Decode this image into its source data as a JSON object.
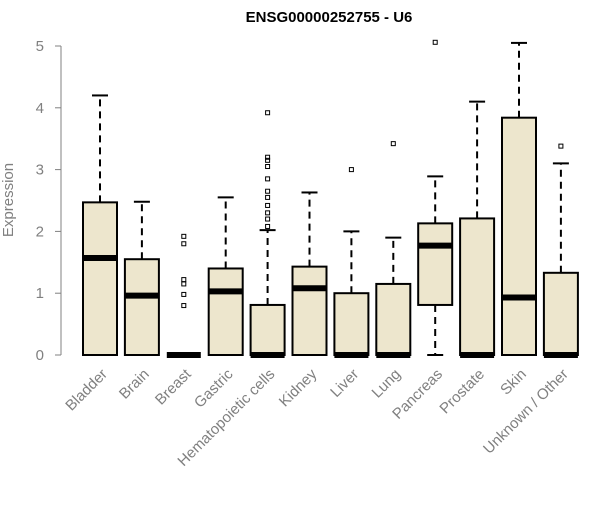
{
  "chart_data": {
    "type": "boxplot",
    "title": "ENSG00000252755 - U6",
    "ylabel": "Expression",
    "ylim": [
      0,
      5
    ],
    "yticks": [
      0,
      1,
      2,
      3,
      4,
      5
    ],
    "box_color": "#ede6cd",
    "outline_color": "#000000",
    "axis_color": "#808080",
    "label_color": "#808080",
    "categories": [
      "Bladder",
      "Brain",
      "Breast",
      "Gastric",
      "Hematopoietic cells",
      "Kidney",
      "Liver",
      "Lung",
      "Pancreas",
      "Prostate",
      "Skin",
      "Unknown / Other"
    ],
    "boxes": [
      {
        "q1": 0,
        "median": 1.57,
        "q3": 2.47,
        "whisker_low": 0,
        "whisker_high": 4.2,
        "outliers": []
      },
      {
        "q1": 0,
        "median": 0.96,
        "q3": 1.55,
        "whisker_low": 0,
        "whisker_high": 2.48,
        "outliers": []
      },
      {
        "q1": 0,
        "median": 0,
        "q3": 0,
        "whisker_low": 0,
        "whisker_high": 0,
        "outliers": [
          0.8,
          0.98,
          1.15,
          1.22,
          1.8,
          1.92
        ]
      },
      {
        "q1": 0,
        "median": 1.03,
        "q3": 1.4,
        "whisker_low": 0,
        "whisker_high": 2.55,
        "outliers": []
      },
      {
        "q1": 0,
        "median": 0,
        "q3": 0.81,
        "whisker_low": 0,
        "whisker_high": 2.02,
        "outliers": [
          2.08,
          2.2,
          2.3,
          2.42,
          2.55,
          2.65,
          2.85,
          3.05,
          3.15,
          3.2,
          3.92
        ]
      },
      {
        "q1": 0,
        "median": 1.08,
        "q3": 1.43,
        "whisker_low": 0,
        "whisker_high": 2.63,
        "outliers": []
      },
      {
        "q1": 0,
        "median": 0,
        "q3": 1.0,
        "whisker_low": 0,
        "whisker_high": 2.0,
        "outliers": [
          3.0
        ]
      },
      {
        "q1": 0,
        "median": 0,
        "q3": 1.15,
        "whisker_low": 0,
        "whisker_high": 1.9,
        "outliers": [
          3.42
        ]
      },
      {
        "q1": 0.81,
        "median": 1.77,
        "q3": 2.13,
        "whisker_low": 0,
        "whisker_high": 2.89,
        "outliers": [
          5.06
        ]
      },
      {
        "q1": 0,
        "median": 0,
        "q3": 2.21,
        "whisker_low": 0,
        "whisker_high": 4.1,
        "outliers": []
      },
      {
        "q1": 0,
        "median": 0.93,
        "q3": 3.84,
        "whisker_low": 0,
        "whisker_high": 5.05,
        "outliers": []
      },
      {
        "q1": 0,
        "median": 0,
        "q3": 1.33,
        "whisker_low": 0,
        "whisker_high": 3.1,
        "outliers": [
          3.38
        ]
      }
    ]
  }
}
